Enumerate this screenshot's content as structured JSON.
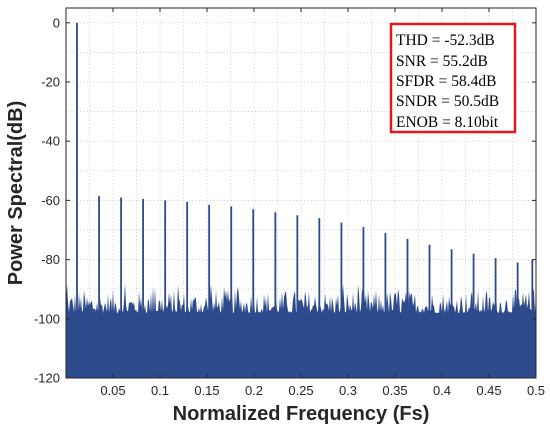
{
  "chart_data": {
    "type": "bar",
    "title": "",
    "xlabel": "Normalized Frequency (Fs)",
    "ylabel": "Power Spectral(dB)",
    "xlim": [
      0,
      0.5
    ],
    "ylim": [
      -120,
      5
    ],
    "x_ticks": [
      {
        "value": 0.05,
        "label": "0.05"
      },
      {
        "value": 0.1,
        "label": "0.1"
      },
      {
        "value": 0.15,
        "label": "0.15"
      },
      {
        "value": 0.2,
        "label": "0.2"
      },
      {
        "value": 0.25,
        "label": "0.25"
      },
      {
        "value": 0.3,
        "label": "0.3"
      },
      {
        "value": 0.35,
        "label": "0.35"
      },
      {
        "value": 0.4,
        "label": "0.4"
      },
      {
        "value": 0.45,
        "label": "0.45"
      },
      {
        "value": 0.5,
        "label": "0.5"
      }
    ],
    "y_ticks": [
      {
        "value": 0,
        "label": "0"
      },
      {
        "value": -20,
        "label": "-20"
      },
      {
        "value": -40,
        "label": "-40"
      },
      {
        "value": -60,
        "label": "-60"
      },
      {
        "value": -80,
        "label": "-80"
      },
      {
        "value": -100,
        "label": "-100"
      },
      {
        "value": -120,
        "label": "-120"
      }
    ],
    "grid": true,
    "grid_style": "dotted",
    "bar_color": "#2c4a8c",
    "axis_color": "#262626",
    "noise_floor_db": [
      -98,
      -90
    ],
    "fundamental": {
      "x": 0.0117,
      "y": 0
    },
    "harmonics": [
      {
        "x": 0.0352,
        "y": -58.5
      },
      {
        "x": 0.0586,
        "y": -59
      },
      {
        "x": 0.082,
        "y": -59.5
      },
      {
        "x": 0.1055,
        "y": -60
      },
      {
        "x": 0.1289,
        "y": -60.5
      },
      {
        "x": 0.1523,
        "y": -61.5
      },
      {
        "x": 0.1758,
        "y": -62
      },
      {
        "x": 0.1992,
        "y": -63
      },
      {
        "x": 0.2227,
        "y": -64
      },
      {
        "x": 0.2461,
        "y": -65
      },
      {
        "x": 0.2695,
        "y": -66
      },
      {
        "x": 0.293,
        "y": -67.5
      },
      {
        "x": 0.3164,
        "y": -69
      },
      {
        "x": 0.3398,
        "y": -71
      },
      {
        "x": 0.3633,
        "y": -73
      },
      {
        "x": 0.3867,
        "y": -75
      },
      {
        "x": 0.4102,
        "y": -76.5
      },
      {
        "x": 0.4336,
        "y": -78
      },
      {
        "x": 0.457,
        "y": -79.5
      },
      {
        "x": 0.4805,
        "y": -81
      },
      {
        "x": 0.4961,
        "y": -80
      }
    ],
    "annotation": {
      "border_color": "#e0191c",
      "lines": [
        "THD = -52.3dB",
        "SNR = 55.2dB",
        "SFDR = 58.4dB",
        "SNDR = 50.5dB",
        "ENOB = 8.10bit"
      ]
    }
  }
}
